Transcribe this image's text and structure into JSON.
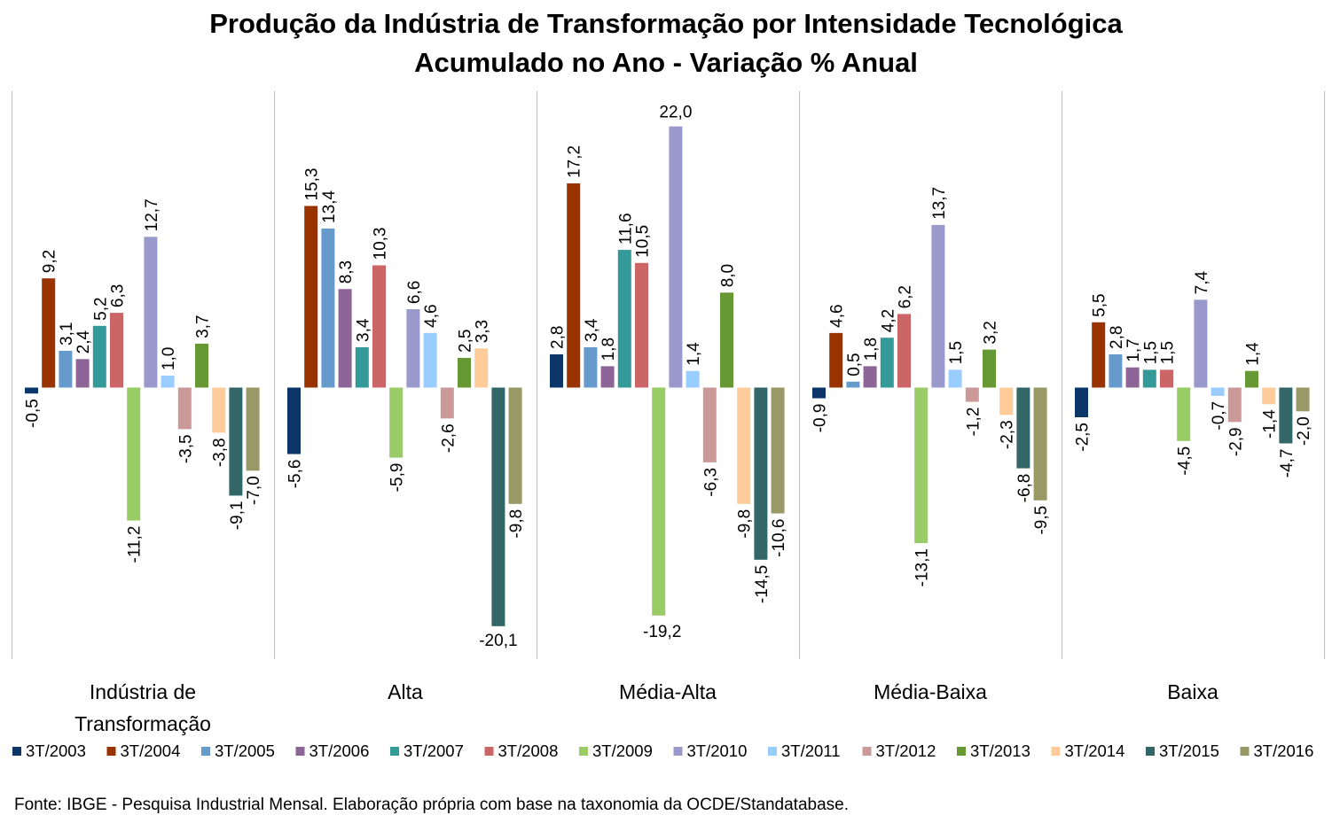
{
  "chart_data": {
    "type": "bar",
    "title": "Produção da Indústria de Transformação por Intensidade Tecnológica",
    "subtitle": "Acumulado no Ano - Variação % Anual",
    "xlabel": "",
    "ylabel": "",
    "ylim": [
      -20.5,
      22.5
    ],
    "grid": false,
    "legend_position": "bottom",
    "categories": [
      "Indústria de Transformação",
      "Alta",
      "Média-Alta",
      "Média-Baixa",
      "Baixa"
    ],
    "series": [
      {
        "name": "3T/2003",
        "color": "#0b3667",
        "values": [
          -0.5,
          -5.6,
          2.8,
          -0.9,
          -2.5
        ],
        "labels": [
          "-0,5",
          "-5,6",
          "2,8",
          "-0,9",
          "-2,5"
        ]
      },
      {
        "name": "3T/2004",
        "color": "#993300",
        "values": [
          9.2,
          15.3,
          17.2,
          4.6,
          5.5
        ],
        "labels": [
          "9,2",
          "15,3",
          "17,2",
          "4,6",
          "5,5"
        ]
      },
      {
        "name": "3T/2005",
        "color": "#6699cc",
        "values": [
          3.1,
          13.4,
          3.4,
          0.5,
          2.8
        ],
        "labels": [
          "3,1",
          "13,4",
          "3,4",
          "0,5",
          "2,8"
        ]
      },
      {
        "name": "3T/2006",
        "color": "#8e6597",
        "values": [
          2.4,
          8.3,
          1.8,
          1.8,
          1.7
        ],
        "labels": [
          "2,4",
          "8,3",
          "1,8",
          "1,8",
          "1,7"
        ]
      },
      {
        "name": "3T/2007",
        "color": "#339999",
        "values": [
          5.2,
          3.4,
          11.6,
          4.2,
          1.5
        ],
        "labels": [
          "5,2",
          "3,4",
          "11,6",
          "4,2",
          "1,5"
        ]
      },
      {
        "name": "3T/2008",
        "color": "#cc6666",
        "values": [
          6.3,
          10.3,
          10.5,
          6.2,
          1.5
        ],
        "labels": [
          "6,3",
          "10,3",
          "10,5",
          "6,2",
          "1,5"
        ]
      },
      {
        "name": "3T/2009",
        "color": "#99cc66",
        "values": [
          -11.2,
          -5.9,
          -19.2,
          -13.1,
          -4.5
        ],
        "labels": [
          "-11,2",
          "-5,9",
          "-19,2",
          "-13,1",
          "-4,5"
        ]
      },
      {
        "name": "3T/2010",
        "color": "#9999cc",
        "values": [
          12.7,
          6.6,
          22.0,
          13.7,
          7.4
        ],
        "labels": [
          "12,7",
          "6,6",
          "22,0",
          "13,7",
          "7,4"
        ]
      },
      {
        "name": "3T/2011",
        "color": "#99ccff",
        "values": [
          1.0,
          4.6,
          1.4,
          1.5,
          -0.7
        ],
        "labels": [
          "1,0",
          "4,6",
          "1,4",
          "1,5",
          "-0,7"
        ]
      },
      {
        "name": "3T/2012",
        "color": "#cc9999",
        "values": [
          -3.5,
          -2.6,
          -6.3,
          -1.2,
          -2.9
        ],
        "labels": [
          "-3,5",
          "-2,6",
          "-6,3",
          "-1,2",
          "-2,9"
        ]
      },
      {
        "name": "3T/2013",
        "color": "#669933",
        "values": [
          3.7,
          2.5,
          8.0,
          3.2,
          1.4
        ],
        "labels": [
          "3,7",
          "2,5",
          "8,0",
          "3,2",
          "1,4"
        ]
      },
      {
        "name": "3T/2014",
        "color": "#ffcc99",
        "values": [
          -3.8,
          3.3,
          -9.8,
          -2.3,
          -1.4
        ],
        "labels": [
          "-3,8",
          "3,3",
          "-9,8",
          "-2,3",
          "-1,4"
        ]
      },
      {
        "name": "3T/2015",
        "color": "#336666",
        "values": [
          -9.1,
          -20.1,
          -14.5,
          -6.8,
          -4.7
        ],
        "labels": [
          "-9,1",
          "-20,1",
          "-14,5",
          "-6,8",
          "-4,7"
        ]
      },
      {
        "name": "3T/2016",
        "color": "#999966",
        "values": [
          -7.0,
          -9.8,
          -10.6,
          -9.5,
          -2.0
        ],
        "labels": [
          "-7,0",
          "-9,8",
          "-10,6",
          "-9,5",
          "-2,0"
        ]
      }
    ]
  },
  "source_note": "Fonte:  IBGE - Pesquisa Industrial Mensal. Elaboração própria com base na taxonomia da OCDE/Standatabase."
}
